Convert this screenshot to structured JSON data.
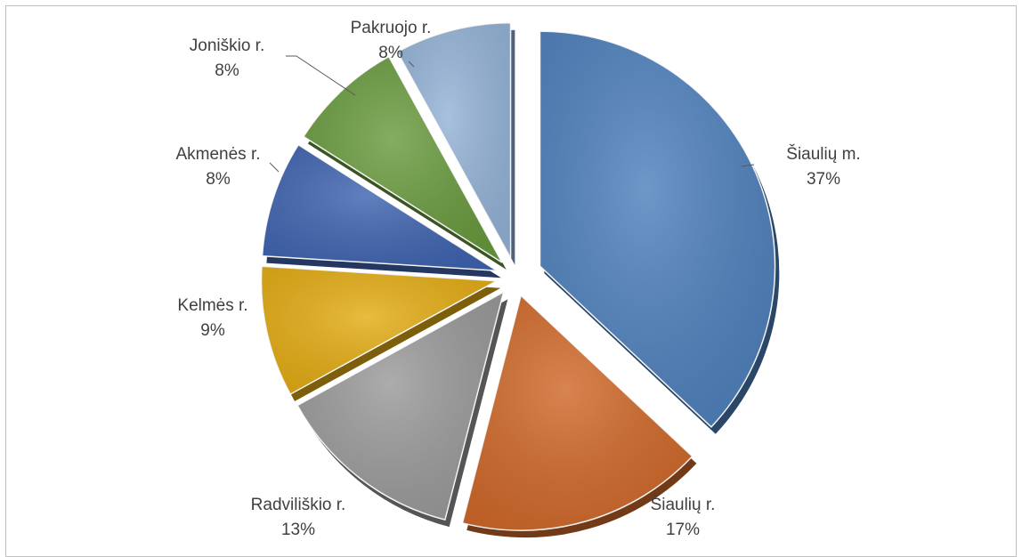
{
  "chart_data": {
    "type": "pie",
    "title": "",
    "exploded": true,
    "style": "3d-beveled",
    "slices": [
      {
        "label": "Šiaulių m.",
        "value": 37,
        "value_label": "37%",
        "color": "#4f81bd"
      },
      {
        "label": "Šiaulių r.",
        "value": 17,
        "value_label": "17%",
        "color": "#d0692a"
      },
      {
        "label": "Radviliškio r.",
        "value": 13,
        "value_label": "13%",
        "color": "#9a9a9a"
      },
      {
        "label": "Kelmės r.",
        "value": 9,
        "value_label": "9%",
        "color": "#e3ac14"
      },
      {
        "label": "Akmenės r.",
        "value": 8,
        "value_label": "8%",
        "color": "#3f64b0"
      },
      {
        "label": "Joniškio r.",
        "value": 8,
        "value_label": "8%",
        "color": "#6a9b3f"
      },
      {
        "label": "Pakruojo r.",
        "value": 8,
        "value_label": "8%",
        "color": "#95b3d7"
      }
    ],
    "legend": "none",
    "data_labels": "outside-with-leader-lines"
  }
}
